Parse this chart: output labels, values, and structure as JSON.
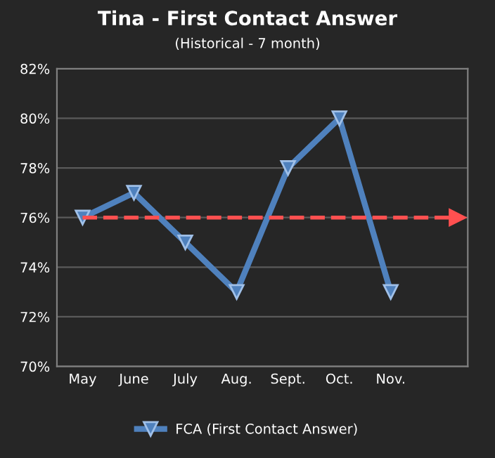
{
  "chart_data": {
    "type": "line",
    "title": "Tina - First Contact Answer",
    "subtitle": "(Historical - 7 month)",
    "categories": [
      "May",
      "June",
      "July",
      "Aug.",
      "Sept.",
      "Oct.",
      "Nov.",
      null
    ],
    "series": [
      {
        "name": "FCA (First Contact Answer)",
        "color": "#4f81bd",
        "values": [
          76,
          77,
          75,
          73,
          78,
          80,
          73,
          null
        ]
      }
    ],
    "ylim": [
      70,
      82
    ],
    "yticks": [
      {
        "value": 70,
        "label": "70%"
      },
      {
        "value": 72,
        "label": "72%"
      },
      {
        "value": 74,
        "label": "74%"
      },
      {
        "value": 76,
        "label": "76%"
      },
      {
        "value": 78,
        "label": "78%"
      },
      {
        "value": 80,
        "label": "80%"
      },
      {
        "value": 82,
        "label": "82%"
      }
    ],
    "ref_lines": [
      {
        "axis": "y",
        "value": 76,
        "color": "#ff5050",
        "line_style": "dashed"
      }
    ],
    "grid": "y",
    "legend": "bottom",
    "marker": "triangle",
    "line_style": "solid"
  }
}
